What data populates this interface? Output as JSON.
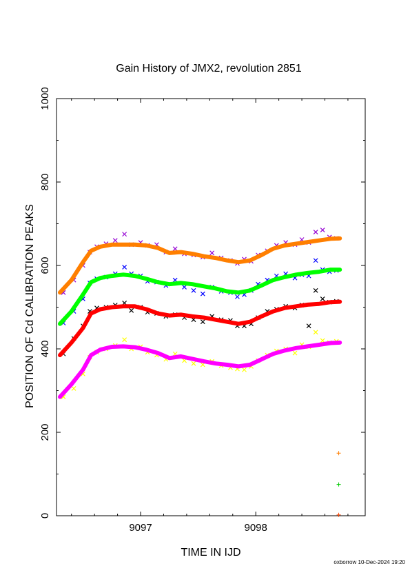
{
  "chart_data": {
    "type": "scatter",
    "title": "Gain History of JMX2, revolution 2851",
    "xlabel": "TIME IN IJD",
    "ylabel": "POSITION OF Cd CALIBRATION PEAKS",
    "xlim": [
      9096.27,
      9098.95
    ],
    "ylim": [
      0,
      1000
    ],
    "xticks": [
      9097,
      9098
    ],
    "xtick_labels": [
      "9097",
      "9098"
    ],
    "yticks": [
      0,
      200,
      400,
      600,
      800,
      1000
    ],
    "ytick_labels": [
      "0",
      "200",
      "400",
      "600",
      "800",
      "1000"
    ],
    "grid": false,
    "footer": "oxborrow 10-Dec-2024 19:20",
    "series": [
      {
        "kind": "points",
        "marker": "x",
        "color": "#9400d3",
        "x": [
          9096.33,
          9096.42,
          9096.5,
          9096.56,
          9096.62,
          9096.7,
          9096.78,
          9096.86,
          9096.92,
          9097.0,
          9097.06,
          9097.14,
          9097.22,
          9097.3,
          9097.38,
          9097.46,
          9097.54,
          9097.62,
          9097.7,
          9097.78,
          9097.84,
          9097.9,
          9097.96,
          9098.02,
          9098.1,
          9098.18,
          9098.26,
          9098.34,
          9098.4,
          9098.46,
          9098.52,
          9098.58,
          9098.64,
          9098.7
        ],
        "y": [
          535,
          565,
          600,
          632,
          645,
          652,
          660,
          675,
          650,
          655,
          648,
          650,
          632,
          640,
          628,
          625,
          620,
          630,
          618,
          612,
          605,
          615,
          610,
          625,
          635,
          648,
          655,
          650,
          662,
          655,
          680,
          685,
          668,
          665
        ]
      },
      {
        "kind": "points",
        "marker": "x",
        "color": "#0000ff",
        "x": [
          9096.33,
          9096.42,
          9096.5,
          9096.56,
          9096.62,
          9096.7,
          9096.78,
          9096.86,
          9096.92,
          9097.0,
          9097.06,
          9097.14,
          9097.22,
          9097.3,
          9097.38,
          9097.46,
          9097.54,
          9097.62,
          9097.7,
          9097.78,
          9097.84,
          9097.9,
          9097.96,
          9098.02,
          9098.1,
          9098.18,
          9098.26,
          9098.34,
          9098.4,
          9098.46,
          9098.52,
          9098.58,
          9098.64,
          9098.7
        ],
        "y": [
          462,
          490,
          520,
          558,
          568,
          572,
          580,
          596,
          580,
          575,
          562,
          560,
          552,
          565,
          548,
          540,
          532,
          548,
          538,
          535,
          525,
          530,
          540,
          555,
          565,
          575,
          580,
          570,
          578,
          575,
          612,
          590,
          585,
          588
        ]
      },
      {
        "kind": "points",
        "marker": "x",
        "color": "#000000",
        "x": [
          9096.33,
          9096.42,
          9096.5,
          9096.56,
          9096.62,
          9096.7,
          9096.78,
          9096.86,
          9096.92,
          9097.0,
          9097.06,
          9097.14,
          9097.22,
          9097.3,
          9097.38,
          9097.46,
          9097.54,
          9097.62,
          9097.7,
          9097.78,
          9097.84,
          9097.9,
          9097.96,
          9098.02,
          9098.1,
          9098.18,
          9098.26,
          9098.34,
          9098.4,
          9098.46,
          9098.52,
          9098.58,
          9098.64,
          9098.7
        ],
        "y": [
          388,
          425,
          455,
          490,
          498,
          500,
          505,
          510,
          492,
          500,
          488,
          485,
          478,
          482,
          475,
          470,
          465,
          478,
          470,
          468,
          455,
          455,
          460,
          475,
          490,
          495,
          502,
          498,
          505,
          455,
          540,
          520,
          512,
          514
        ]
      },
      {
        "kind": "points",
        "marker": "x",
        "color": "#ffff00",
        "x": [
          9096.33,
          9096.42,
          9096.5,
          9096.56,
          9096.62,
          9096.7,
          9096.78,
          9096.86,
          9096.92,
          9097.0,
          9097.06,
          9097.14,
          9097.22,
          9097.3,
          9097.38,
          9097.46,
          9097.54,
          9097.62,
          9097.7,
          9097.78,
          9097.84,
          9097.9,
          9097.96,
          9098.02,
          9098.1,
          9098.18,
          9098.26,
          9098.34,
          9098.4,
          9098.46,
          9098.52,
          9098.58,
          9098.64,
          9098.7
        ],
        "y": [
          285,
          305,
          340,
          380,
          392,
          400,
          408,
          422,
          400,
          405,
          392,
          385,
          375,
          388,
          372,
          365,
          362,
          370,
          360,
          355,
          352,
          350,
          358,
          372,
          385,
          395,
          400,
          390,
          410,
          405,
          440,
          420,
          415,
          418
        ]
      },
      {
        "kind": "line",
        "color": "#ff7f00",
        "x": [
          9096.3,
          9096.4,
          9096.5,
          9096.57,
          9096.65,
          9096.75,
          9096.85,
          9096.95,
          9097.05,
          9097.15,
          9097.25,
          9097.35,
          9097.45,
          9097.55,
          9097.65,
          9097.75,
          9097.85,
          9097.95,
          9098.05,
          9098.15,
          9098.25,
          9098.35,
          9098.45,
          9098.55,
          9098.65,
          9098.73
        ],
        "y": [
          535,
          565,
          608,
          635,
          645,
          650,
          650,
          650,
          648,
          642,
          630,
          632,
          628,
          622,
          618,
          612,
          608,
          612,
          625,
          640,
          648,
          652,
          656,
          660,
          664,
          665
        ]
      },
      {
        "kind": "line",
        "color": "#00ff00",
        "x": [
          9096.3,
          9096.4,
          9096.5,
          9096.57,
          9096.65,
          9096.75,
          9096.85,
          9096.95,
          9097.05,
          9097.15,
          9097.25,
          9097.35,
          9097.45,
          9097.55,
          9097.65,
          9097.75,
          9097.85,
          9097.95,
          9098.05,
          9098.15,
          9098.25,
          9098.35,
          9098.45,
          9098.55,
          9098.65,
          9098.73
        ],
        "y": [
          460,
          490,
          530,
          560,
          570,
          575,
          578,
          575,
          568,
          560,
          555,
          558,
          555,
          550,
          545,
          538,
          535,
          540,
          552,
          565,
          572,
          578,
          582,
          585,
          590,
          590
        ]
      },
      {
        "kind": "line",
        "color": "#ff0000",
        "x": [
          9096.3,
          9096.4,
          9096.5,
          9096.57,
          9096.65,
          9096.75,
          9096.85,
          9096.95,
          9097.05,
          9097.15,
          9097.25,
          9097.35,
          9097.45,
          9097.55,
          9097.65,
          9097.75,
          9097.85,
          9097.95,
          9098.05,
          9098.15,
          9098.25,
          9098.35,
          9098.45,
          9098.55,
          9098.65,
          9098.73
        ],
        "y": [
          385,
          415,
          450,
          485,
          495,
          500,
          502,
          502,
          495,
          485,
          480,
          482,
          478,
          475,
          470,
          465,
          460,
          465,
          478,
          490,
          498,
          502,
          506,
          508,
          512,
          513
        ]
      },
      {
        "kind": "line",
        "color": "#ff00ff",
        "x": [
          9096.3,
          9096.4,
          9096.5,
          9096.57,
          9096.65,
          9096.75,
          9096.85,
          9096.95,
          9097.05,
          9097.15,
          9097.25,
          9097.35,
          9097.45,
          9097.55,
          9097.65,
          9097.75,
          9097.85,
          9097.95,
          9098.05,
          9098.15,
          9098.25,
          9098.35,
          9098.45,
          9098.55,
          9098.65,
          9098.73
        ],
        "y": [
          285,
          315,
          350,
          385,
          398,
          405,
          406,
          404,
          398,
          390,
          378,
          382,
          376,
          370,
          365,
          362,
          358,
          362,
          375,
          388,
          396,
          402,
          406,
          410,
          414,
          415
        ]
      },
      {
        "kind": "marker",
        "marker": "+",
        "color": "#ff7f00",
        "x": [
          9098.72
        ],
        "y": [
          150
        ]
      },
      {
        "kind": "marker",
        "marker": "+",
        "color": "#00cc00",
        "x": [
          9098.72
        ],
        "y": [
          75
        ]
      },
      {
        "kind": "marker",
        "marker": "+",
        "color": "#ff4500",
        "x": [
          9098.72
        ],
        "y": [
          2
        ]
      }
    ]
  }
}
